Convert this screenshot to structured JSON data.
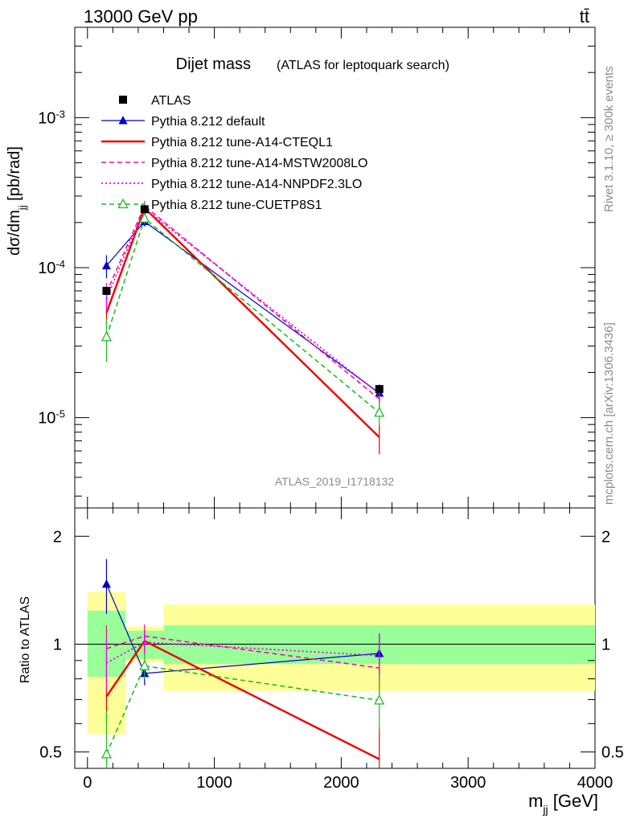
{
  "header": {
    "left": "13000 GeV pp",
    "right": "tt̄"
  },
  "side_labels": {
    "rivet": "Rivet 3.1.10, ≥ 300k events",
    "mcplots": "mcplots.cern.ch [arXiv:1306.3436]"
  },
  "chart_data": {
    "type": "line",
    "title": "Dijet mass",
    "subtitle": "(ATLAS for leptoquark search)",
    "watermark": "ATLAS_2019_I1718132",
    "xlabel": "m_jj [GeV]",
    "ylabel": "dσ/dm_jj [pb/rad]",
    "ratio_ylabel": "Ratio to ATLAS",
    "x_axis": {
      "range": [
        -100,
        4000
      ],
      "ticks": [
        0,
        1000,
        2000,
        3000,
        4000
      ],
      "tick_labels": [
        "0",
        "1000",
        "2000",
        "3000",
        "4000"
      ]
    },
    "main_y_axis": {
      "scale": "log",
      "range": [
        2.5e-06,
        0.004
      ],
      "ticks": [
        1e-05,
        0.0001,
        0.001
      ],
      "tick_labels": [
        "10^-5",
        "10^-4",
        "10^-3"
      ]
    },
    "ratio_y_axis": {
      "scale": "log",
      "range": [
        0.45,
        2.4
      ],
      "ticks": [
        0.5,
        1,
        2
      ],
      "tick_labels": [
        "0.5",
        "1",
        "2"
      ]
    },
    "bins": [
      {
        "lo": 0,
        "hi": 300,
        "center": 150
      },
      {
        "lo": 300,
        "hi": 600,
        "center": 450
      },
      {
        "lo": 600,
        "hi": 4000,
        "center": 2300
      }
    ],
    "data": {
      "name": "ATLAS",
      "values": [
        7e-05,
        0.000245,
        1.55e-05
      ],
      "band_stat_ratio": [
        [
          0.81,
          1.24
        ],
        [
          0.91,
          1.09
        ],
        [
          0.88,
          1.13
        ]
      ],
      "band_total_ratio": [
        [
          0.56,
          1.4
        ],
        [
          0.89,
          1.12
        ],
        [
          0.74,
          1.29
        ]
      ]
    },
    "series": [
      {
        "name": "Pythia 8.212 default",
        "color": "#0000cc",
        "dash": "solid",
        "marker": "triangle-filled",
        "values": [
          0.000103,
          0.000203,
          1.46e-05
        ],
        "errors": [
          1.8e-05,
          1.5e-05,
          2e-06
        ]
      },
      {
        "name": "Pythia 8.212 tune-A14-CTEQL1",
        "color": "#ee0000",
        "dash": "solid-thick",
        "marker": "none",
        "values": [
          5e-05,
          0.00025,
          7.4e-06
        ],
        "errors": [
          8e-06,
          1.8e-05,
          1.7e-06
        ]
      },
      {
        "name": "Pythia 8.212 tune-A14-MSTW2008LO",
        "color": "#ee1493",
        "dash": "dashed",
        "marker": "none",
        "values": [
          6.8e-05,
          0.000258,
          1.33e-05
        ],
        "errors": [
          1.1e-05,
          2e-05,
          2.2e-06
        ]
      },
      {
        "name": "Pythia 8.212 tune-A14-NNPDF2.3LO",
        "color": "#ee00ee",
        "dash": "dotted",
        "marker": "none",
        "values": [
          6.2e-05,
          0.000248,
          1.44e-05
        ],
        "errors": [
          1e-05,
          1.9e-05,
          2.2e-06
        ]
      },
      {
        "name": "Pythia 8.212 tune-CUETP8S1",
        "color": "#22bb22",
        "dash": "dashed",
        "marker": "triangle-open",
        "values": [
          3.45e-05,
          0.000213,
          1.08e-05
        ],
        "errors": [
          1.1e-05,
          1.7e-05,
          2e-06
        ]
      }
    ]
  }
}
